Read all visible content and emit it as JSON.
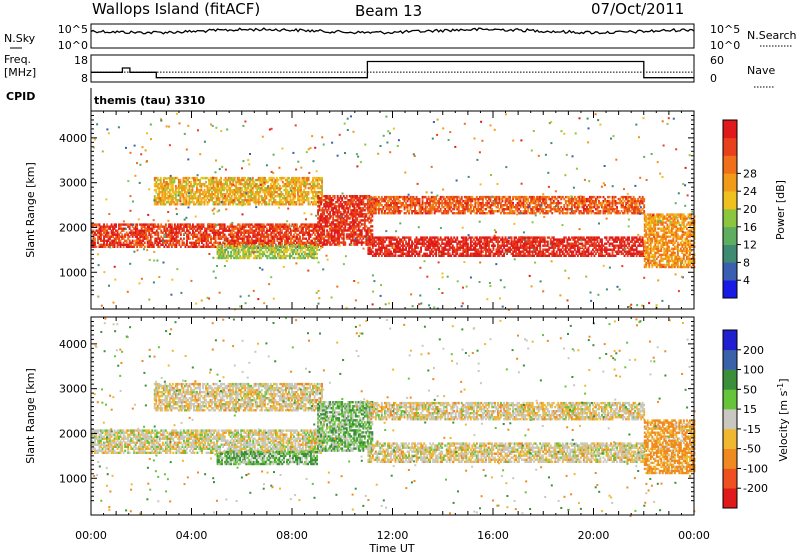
{
  "header": {
    "station": "Wallops Island (fitACF)",
    "beam": "Beam 13",
    "date": "07/Oct/2011"
  },
  "noise_panel": {
    "left_label": "N.Sky",
    "right_label": "N.Search",
    "left_ticks": [
      "10^5",
      "10^0"
    ],
    "right_ticks": [
      "10^5",
      "10^0"
    ]
  },
  "freq_panel": {
    "left_label_1": "Freq.",
    "left_label_2": "[MHz]",
    "right_label": "Nave",
    "left_ticks": [
      "18",
      "8"
    ],
    "right_ticks": [
      "60",
      "0"
    ],
    "freq_steps": [
      [
        0.0,
        11.6
      ],
      [
        1.25,
        11.6
      ],
      [
        1.25,
        13.2
      ],
      [
        1.55,
        13.2
      ],
      [
        1.55,
        11.6
      ],
      [
        2.6,
        11.6
      ],
      [
        2.6,
        9.6
      ],
      [
        11.0,
        9.6
      ],
      [
        11.0,
        15.6
      ],
      [
        22.0,
        15.6
      ],
      [
        22.0,
        9.6
      ],
      [
        24.0,
        9.6
      ]
    ],
    "nave_level": 22
  },
  "cpid": {
    "label": "CPID",
    "program": "themis (tau) 3310"
  },
  "power_panel": {
    "ylabel": "Slant Range [km]",
    "yticks": [
      "1000",
      "2000",
      "3000",
      "4000"
    ],
    "ylim": [
      180,
      4600
    ]
  },
  "velocity_panel": {
    "ylabel": "Slant Range [km]",
    "yticks": [
      "1000",
      "2000",
      "3000",
      "4000"
    ],
    "ylim": [
      180,
      4600
    ]
  },
  "power_colorbar": {
    "title": "Power [dB]",
    "labels": [
      "4",
      "8",
      "12",
      "16",
      "20",
      "24",
      "28"
    ],
    "colors": [
      "#1a1ae6",
      "#3a5fb0",
      "#3e8a72",
      "#5fae5f",
      "#8cc63e",
      "#f0c01e",
      "#f29a1a",
      "#f0701a",
      "#e8401a",
      "#e01a1a"
    ]
  },
  "velocity_colorbar": {
    "title_main": "Velocity [m s",
    "title_sup": "-1",
    "title_end": "]",
    "labels": [
      "200",
      "100",
      "50",
      "15",
      "-15",
      "-50",
      "-100",
      "-200"
    ],
    "colors": [
      "#2020d0",
      "#3a62a8",
      "#3b8f3b",
      "#66c43a",
      "#c8c8c0",
      "#f0b830",
      "#f08a20",
      "#ee5020",
      "#e01a1a"
    ]
  },
  "x_axis": {
    "label": "Time UT",
    "ticks": [
      "00:00",
      "04:00",
      "08:00",
      "12:00",
      "16:00",
      "20:00",
      "00:00"
    ]
  },
  "chart_data": {
    "type": "heatmap",
    "x_unit": "hours UT",
    "xlim": [
      0,
      24
    ],
    "ylim": [
      180,
      4600
    ],
    "power_dB_range": [
      0,
      30
    ],
    "velocity_range": [
      -200,
      200
    ],
    "echo_bands": [
      {
        "panel": "both",
        "t0": 0.0,
        "t1": 9.2,
        "lo": 1550,
        "hi": 2050,
        "power": 26,
        "velocity": -5
      },
      {
        "panel": "both",
        "t0": 2.5,
        "t1": 9.2,
        "lo": 2500,
        "hi": 3100,
        "power": 18,
        "velocity": -10
      },
      {
        "panel": "both",
        "t0": 5.0,
        "t1": 9.0,
        "lo": 1300,
        "hi": 1600,
        "power": 14,
        "velocity": 30
      },
      {
        "panel": "both",
        "t0": 9.0,
        "t1": 11.2,
        "lo": 1600,
        "hi": 2700,
        "power": 27,
        "velocity": 25
      },
      {
        "panel": "both",
        "t0": 11.0,
        "t1": 22.0,
        "lo": 1350,
        "hi": 1800,
        "power": 28,
        "velocity": -8
      },
      {
        "panel": "both",
        "t0": 11.0,
        "t1": 22.0,
        "lo": 2300,
        "hi": 2700,
        "power": 24,
        "velocity": -10
      },
      {
        "panel": "both",
        "t0": 22.0,
        "t1": 24.0,
        "lo": 1100,
        "hi": 2300,
        "power": 20,
        "velocity": -40
      }
    ]
  }
}
